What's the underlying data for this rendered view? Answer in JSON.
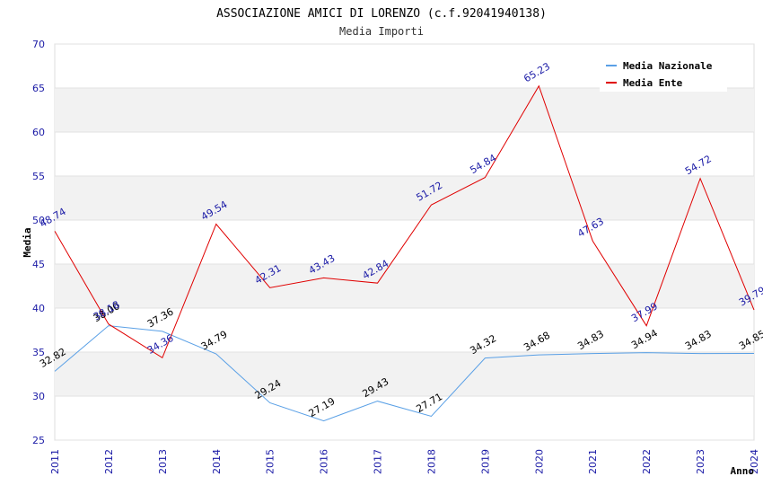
{
  "chart_data": {
    "type": "line",
    "title": "ASSOCIAZIONE AMICI DI LORENZO (c.f.92041940138)",
    "subtitle": "Media Importi",
    "xlabel": "Anno",
    "ylabel": "Media",
    "ylim": [
      25,
      70
    ],
    "yticks": [
      "25",
      "30",
      "35",
      "40",
      "45",
      "50",
      "55",
      "60",
      "65",
      "70"
    ],
    "x": [
      "2011",
      "2012",
      "2013",
      "2014",
      "2015",
      "2016",
      "2017",
      "2018",
      "2019",
      "2020",
      "2021",
      "2022",
      "2023",
      "2024"
    ],
    "grid": true,
    "legend_position": "top-right",
    "series": [
      {
        "name": "Media Nazionale",
        "color": "#5aa0e6",
        "values": [
          32.82,
          38.0,
          37.36,
          34.79,
          29.24,
          27.19,
          29.43,
          27.71,
          34.32,
          34.68,
          34.83,
          34.94,
          34.83,
          34.85
        ],
        "labels": [
          "32.82",
          "38.00",
          "37.36",
          "34.79",
          "29.24",
          "27.19",
          "29.43",
          "27.71",
          "34.32",
          "34.68",
          "34.83",
          "34.94",
          "34.83",
          "34.85"
        ]
      },
      {
        "name": "Media Ente",
        "color": "#e00000",
        "values": [
          48.74,
          38.18,
          34.36,
          49.54,
          42.31,
          43.43,
          42.84,
          51.72,
          54.84,
          65.23,
          47.63,
          37.99,
          54.72,
          39.79
        ],
        "labels": [
          "48.74",
          "38.18",
          "34.36",
          "49.54",
          "42.31",
          "43.43",
          "42.84",
          "51.72",
          "54.84",
          "65.23",
          "47.63",
          "37.99",
          "54.72",
          "39.79"
        ]
      }
    ]
  }
}
